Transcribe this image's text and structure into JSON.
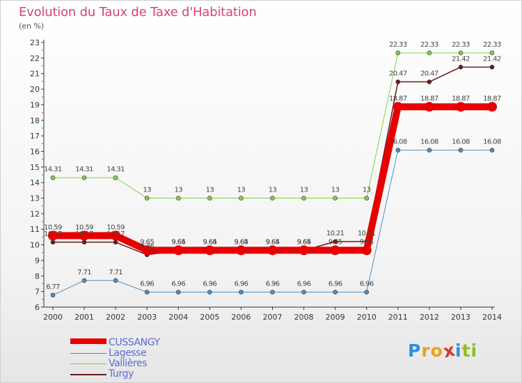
{
  "header": {
    "title": "Evolution du Taux de Taxe d'Habitation",
    "unit": "(en %)"
  },
  "brand": {
    "letters": [
      "P",
      "r",
      "o",
      "x",
      "i",
      "t",
      "i"
    ],
    "colors": [
      "#2f8fd8",
      "#e8a21c",
      "#e8a21c",
      "#d43a2a",
      "#2f8fd8",
      "#8cbf26",
      "#8cbf26"
    ]
  },
  "chart_data": {
    "type": "line",
    "x": [
      2000,
      2001,
      2002,
      2003,
      2004,
      2005,
      2006,
      2007,
      2008,
      2009,
      2010,
      2011,
      2012,
      2013,
      2014
    ],
    "ylim": [
      6,
      23
    ],
    "yticks": [
      6,
      7,
      8,
      9,
      10,
      11,
      12,
      13,
      14,
      15,
      16,
      17,
      18,
      19,
      20,
      21,
      22,
      23
    ],
    "grid": false,
    "legend_position": "bottom-left",
    "series": [
      {
        "name": "CUSSANGY",
        "color": "#e80000",
        "width": 10,
        "values": [
          10.59,
          10.59,
          10.59,
          9.65,
          9.65,
          9.65,
          9.65,
          9.65,
          9.65,
          9.65,
          9.65,
          18.87,
          18.87,
          18.87,
          18.87
        ],
        "labels": [
          "10.59",
          "10.59",
          "10.59",
          "9.65",
          "9.65",
          "9.65",
          "9.65",
          "9.65",
          "9.65",
          "9.65",
          "9.65",
          "18.87",
          "18.87",
          "18.87",
          "18.87"
        ]
      },
      {
        "name": "Lagesse",
        "color": "#4a90c8",
        "width": 1,
        "values": [
          6.77,
          7.71,
          7.71,
          6.96,
          6.96,
          6.96,
          6.96,
          6.96,
          6.96,
          6.96,
          6.96,
          16.08,
          16.08,
          16.08,
          16.08
        ],
        "labels": [
          "6.77",
          "7.71",
          "7.71",
          "6.96",
          "6.96",
          "6.96",
          "6.96",
          "6.96",
          "6.96",
          "6.96",
          "6.96",
          "16.08",
          "16.08",
          "16.08",
          "16.08"
        ]
      },
      {
        "name": "Vallières",
        "color": "#7ed04a",
        "width": 1,
        "values": [
          14.31,
          14.31,
          14.31,
          13,
          13,
          13,
          13,
          13,
          13,
          13,
          13,
          22.33,
          22.33,
          22.33,
          22.33
        ],
        "labels": [
          "14.31",
          "14.31",
          "14.31",
          "13",
          "13",
          "13",
          "13",
          "13",
          "13",
          "13",
          "13",
          "22.33",
          "22.33",
          "22.33",
          "22.33"
        ]
      },
      {
        "name": "Turgy",
        "color": "#6b1a1a",
        "width": 1.5,
        "values": [
          10.17,
          10.17,
          10.17,
          9.36,
          9.64,
          9.64,
          9.64,
          9.64,
          9.64,
          10.21,
          10.21,
          20.47,
          20.47,
          21.42,
          21.42
        ],
        "labels": [
          "10.17",
          "10.17",
          "10.17",
          "9.36",
          "9.64",
          "9.64",
          "9.64",
          "9.64",
          "9.64",
          "10.21",
          "10.21",
          "20.47",
          "20.47",
          "21.42",
          "21.42"
        ]
      }
    ]
  }
}
